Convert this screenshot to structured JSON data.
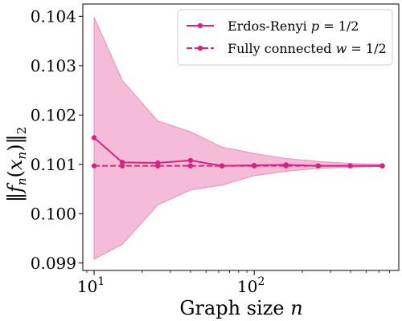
{
  "chart_data": {
    "type": "line",
    "xlabel": "Graph size n",
    "ylabel": "||f_n(x_n)||_2",
    "x_scale": "log",
    "xlim": [
      8.5,
      800
    ],
    "ylim": [
      0.09885,
      0.10425
    ],
    "y_ticks": [
      0.099,
      0.1,
      0.101,
      0.102,
      0.103,
      0.104
    ],
    "y_tick_labels": [
      "0.099",
      "0.100",
      "0.101",
      "0.102",
      "0.103",
      "0.104"
    ],
    "x_ticks": [
      10,
      100
    ],
    "x_tick_labels": [
      "10^1",
      "10^2"
    ],
    "grid": false,
    "legend_position": "top-right",
    "colors": {
      "series": "#d62283",
      "band": "#f4bcd6",
      "band_edge": "#e88fb8"
    },
    "x": [
      10,
      15,
      25,
      40,
      63,
      100,
      158,
      251,
      398,
      631
    ],
    "series": [
      {
        "name": "Erdos-Renyi p = 1/2",
        "style": "solid",
        "marker": "circle",
        "values": [
          0.10154,
          0.10104,
          0.10103,
          0.10108,
          0.10097,
          0.10098,
          0.10099,
          0.10097,
          0.10097,
          0.10097
        ],
        "band_upper": [
          0.10398,
          0.1027,
          0.10188,
          0.10166,
          0.10135,
          0.10122,
          0.10112,
          0.10106,
          0.10102,
          0.101
        ],
        "band_lower": [
          0.09908,
          0.09938,
          0.10018,
          0.10048,
          0.10058,
          0.10077,
          0.10086,
          0.10092,
          0.10094,
          0.10096
        ]
      },
      {
        "name": "Fully connected w = 1/2",
        "style": "dashed",
        "marker": "circle",
        "values": [
          0.10097,
          0.10097,
          0.10097,
          0.10097,
          0.10097,
          0.10097,
          0.10097,
          0.10097,
          0.10097,
          0.10097
        ]
      }
    ],
    "legend": {
      "entries": [
        {
          "prefix": "Erdos-Renyi ",
          "math": "p",
          "suffix": " = 1/2"
        },
        {
          "prefix": "Fully connected ",
          "math": "w",
          "suffix": " = 1/2"
        }
      ]
    }
  }
}
